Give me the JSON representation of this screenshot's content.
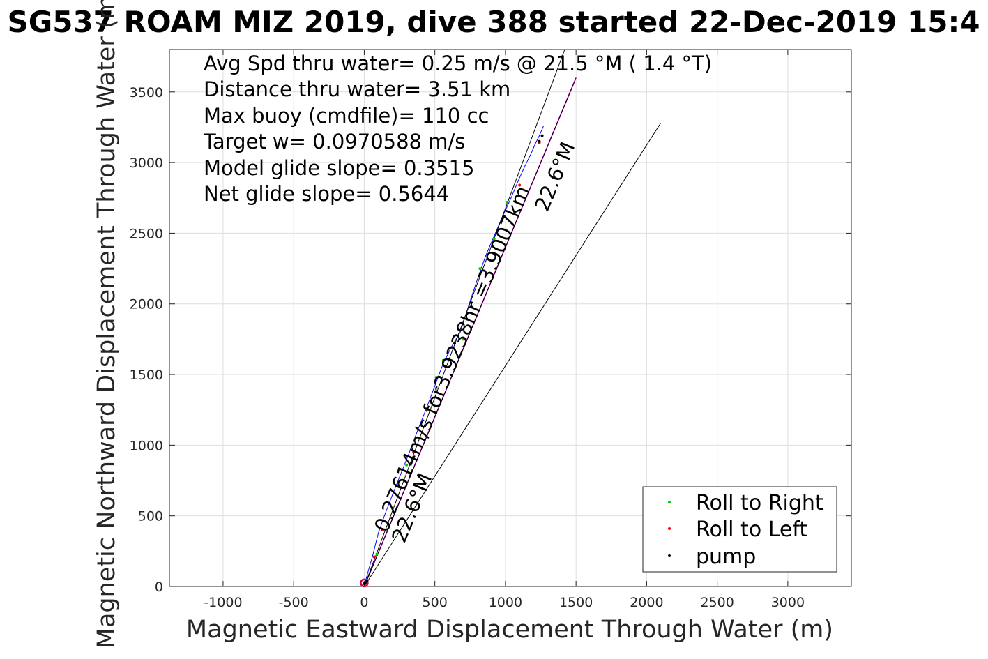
{
  "chart_data": {
    "type": "line",
    "title": "SG537 ROAM MIZ 2019, dive 388 started 22-Dec-2019 15:4",
    "xlabel": "Magnetic Eastward Displacement Through Water (m)",
    "ylabel": "Magnetic Northward Displacement Through Water (m)",
    "xlim": [
      -1380,
      3450
    ],
    "ylim": [
      0,
      3800
    ],
    "xticks": [
      -1000,
      -500,
      0,
      500,
      1000,
      1500,
      2000,
      2500,
      3000
    ],
    "yticks": [
      0,
      500,
      1000,
      1500,
      2000,
      2500,
      3000,
      3500
    ],
    "grid": true,
    "stats": [
      "Avg Spd thru water=  0.25 m/s @  21.5 °M (  1.4 °T)",
      "Distance thru water=  3.51 km",
      "Max buoy (cmdfile)= 110 cc",
      "Target w= 0.0970588 m/s",
      "Model glide slope= 0.3515",
      "Net glide slope= 0.5644"
    ],
    "annotations": {
      "speed_text": "0.27614m/s for3.9238hr =3.9007km",
      "heading_top": "22.6°M",
      "heading_bottom": "22.6°M"
    },
    "series": [
      {
        "color": "#0000ff",
        "x": [
          0,
          20,
          60,
          100,
          150,
          200,
          260,
          320,
          380,
          440,
          500,
          560,
          620,
          680,
          740,
          800,
          860,
          920,
          980,
          1040,
          1090,
          1140,
          1180,
          1210,
          1240,
          1270
        ],
        "y": [
          0,
          80,
          220,
          380,
          520,
          650,
          800,
          950,
          1110,
          1260,
          1420,
          1580,
          1700,
          1800,
          1990,
          2170,
          2340,
          2480,
          2620,
          2750,
          2870,
          2980,
          3060,
          3130,
          3190,
          3260
        ]
      },
      {
        "color": "#ff00ff",
        "x": [
          0,
          1500
        ],
        "y": [
          0,
          3600
        ]
      },
      {
        "color": "#000000",
        "x": [
          0,
          1500
        ],
        "y": [
          0,
          3600
        ]
      },
      {
        "color": "#000000",
        "x": [
          0,
          1420
        ],
        "y": [
          0,
          3800
        ]
      },
      {
        "color": "#000000",
        "x": [
          0,
          2100
        ],
        "y": [
          0,
          3280
        ]
      }
    ],
    "markers": {
      "Roll to Right": {
        "color": "#00cc00",
        "x": [
          90,
          300,
          510,
          560,
          700,
          820,
          920,
          1010
        ],
        "y": [
          230,
          860,
          1480,
          1600,
          1750,
          2250,
          2460,
          2720
        ]
      },
      "Roll to Left": {
        "color": "#ff0000",
        "x": [
          70,
          130,
          350,
          1100,
          1240
        ],
        "y": [
          210,
          400,
          950,
          2840,
          3140
        ]
      },
      "pump": {
        "color": "#000000",
        "x": [
          0,
          20,
          640,
          1240,
          1260
        ],
        "y": [
          20,
          40,
          1720,
          3150,
          3190
        ]
      }
    },
    "start_circle": {
      "color": "#c8003c",
      "x": 0,
      "y": 25
    },
    "legend": {
      "placement": "bottom-right",
      "entries": [
        "Roll to Right",
        "Roll to Left",
        "pump"
      ]
    }
  }
}
